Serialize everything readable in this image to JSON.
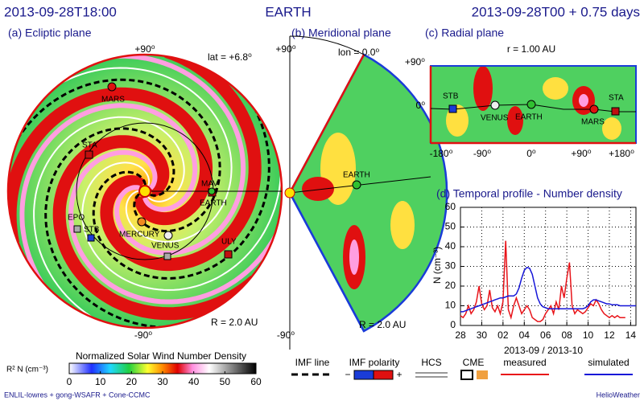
{
  "header": {
    "time": "2013-09-28T18:00",
    "target": "EARTH",
    "run": "2013-09-28T00 + 0.75 days"
  },
  "ecliptic": {
    "title": "(a) Ecliptic plane",
    "top": "+90⁰",
    "bottom": "-90⁰",
    "lat": "lat = +6.8⁰",
    "radius": "R = 2.0 AU",
    "bodies": [
      "MARS",
      "STA",
      "MAV",
      "EARTH",
      "EPO",
      "STB",
      "MERCURY",
      "VENUS",
      "ULY"
    ]
  },
  "meridional": {
    "title": "(b) Meridional plane",
    "top": "+90⁰",
    "bottom": "-90⁰",
    "lon": "lon = 0.0⁰",
    "radius": "R = 2.0 AU",
    "body": "EARTH"
  },
  "radial": {
    "title": "(c) Radial plane",
    "r": "r = 1.00 AU",
    "ytop": "+90⁰",
    "yzero": "0⁰",
    "bodies": [
      "STB",
      "VENUS",
      "EARTH",
      "MARS",
      "STA"
    ],
    "xticks": [
      "-180⁰",
      "-90⁰",
      "0⁰",
      "+90⁰",
      "+180⁰"
    ]
  },
  "legend": {
    "imf_line": "IMF line",
    "imf_polarity": "IMF polarity",
    "minus": "−",
    "plus": "+",
    "hcs": "HCS",
    "cme": "CME"
  },
  "footer": {
    "left": "ENLIL-lowres + gong-WSAFR + Cone-CCMC",
    "right": "HelioWeather"
  },
  "chart_data": [
    {
      "type": "line",
      "title": "(d) Temporal profile - Number density",
      "y_label": "N (cm⁻³)",
      "x_label": "2013-09 / 2013-10",
      "x": [
        0,
        0.25,
        0.5,
        0.75,
        1,
        1.25,
        1.5,
        1.75,
        2,
        2.25,
        2.5,
        2.75,
        3,
        3.25,
        3.5,
        3.75,
        4,
        4.25,
        4.5,
        4.75,
        5,
        5.25,
        5.5,
        5.75,
        6,
        6.25,
        6.5,
        6.75,
        7,
        7.25,
        7.5,
        7.75,
        8,
        8.25,
        8.5,
        8.75,
        9,
        9.25,
        9.5,
        9.75,
        10,
        10.25,
        10.5,
        10.75,
        11,
        11.25,
        11.5,
        11.75,
        12,
        12.25,
        12.5,
        12.75,
        13,
        13.25,
        13.5,
        13.75,
        14,
        14.25,
        14.5,
        14.75,
        15,
        15.25,
        15.5,
        15.75,
        16,
        16.25,
        16.5
      ],
      "xlim": [
        0,
        16.5
      ],
      "xticks": [
        {
          "value": 0,
          "label": "28"
        },
        {
          "value": 2,
          "label": "30"
        },
        {
          "value": 4,
          "label": "02"
        },
        {
          "value": 6,
          "label": "04"
        },
        {
          "value": 8,
          "label": "06"
        },
        {
          "value": 10,
          "label": "08"
        },
        {
          "value": 12,
          "label": "10"
        },
        {
          "value": 14,
          "label": "12"
        },
        {
          "value": 16,
          "label": "14"
        }
      ],
      "ylim": [
        0,
        60
      ],
      "yticks": [
        0,
        10,
        20,
        30,
        40,
        50,
        60
      ],
      "grid": true,
      "series": [
        {
          "name": "measured",
          "color": "#e8141a",
          "values": [
            5,
            4,
            6,
            10,
            6,
            8,
            12,
            20,
            11,
            8,
            10,
            18,
            9,
            7,
            10,
            6,
            12,
            43,
            8,
            4,
            10,
            14,
            10,
            6,
            8,
            10,
            8,
            4,
            3,
            2,
            2,
            3,
            6,
            8,
            10,
            6,
            12,
            8,
            20,
            14,
            24,
            32,
            10,
            6,
            8,
            7,
            6,
            7,
            9,
            11,
            10,
            13,
            11,
            8,
            6,
            5,
            4,
            5,
            4,
            5,
            4,
            4,
            4,
            null,
            null,
            null,
            null
          ]
        },
        {
          "name": "simulated",
          "color": "#1515d8",
          "values": [
            7,
            7,
            7.5,
            8,
            8.5,
            9,
            9.5,
            10,
            10.5,
            11,
            11.5,
            12,
            12.5,
            13,
            13.5,
            14,
            14,
            14.5,
            15,
            15,
            15,
            16,
            19,
            24,
            28,
            29.5,
            29,
            26,
            20,
            14,
            11,
            9.5,
            9,
            8.5,
            8.5,
            8.5,
            8.5,
            8.5,
            8.5,
            8.5,
            8.5,
            8.5,
            8.5,
            8.5,
            8.5,
            8.5,
            8.5,
            9,
            10,
            12,
            13,
            13,
            12.5,
            12,
            11.5,
            11,
            11,
            10.5,
            10.5,
            10.5,
            10,
            10,
            10,
            10,
            10,
            10,
            10
          ]
        }
      ]
    },
    {
      "type": "colorbar",
      "title": "Normalized Solar Wind Number Density",
      "label": "R² N (cm⁻³)",
      "xlim": [
        0,
        60
      ],
      "xticks": [
        0,
        10,
        20,
        30,
        40,
        50,
        60
      ]
    }
  ]
}
